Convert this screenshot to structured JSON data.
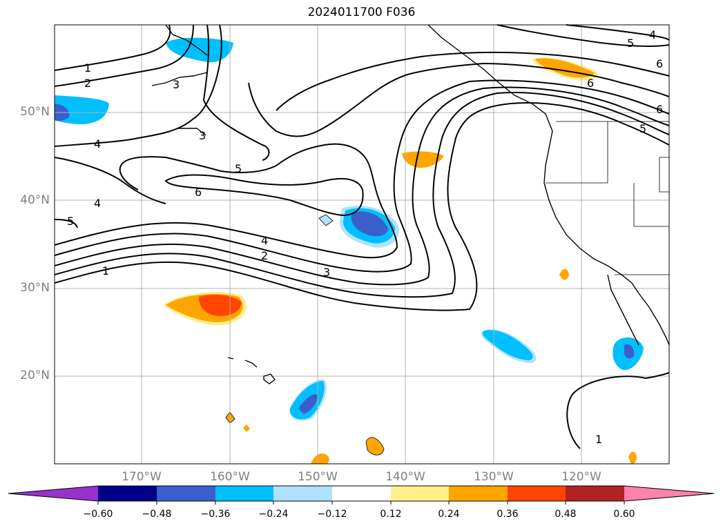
{
  "title": "2024011700 F036",
  "axes": {
    "lat_labels": [
      "50°N",
      "40°N",
      "30°N",
      "20°N"
    ],
    "lon_labels": [
      "170°W",
      "160°W",
      "150°W",
      "140°W",
      "130°W",
      "120°W"
    ]
  },
  "contour_labels": [
    "1",
    "2",
    "3",
    "4",
    "5",
    "6"
  ],
  "colorbar": {
    "ticks": [
      "−0.60",
      "−0.48",
      "−0.36",
      "−0.24",
      "−0.12",
      "0.12",
      "0.24",
      "0.36",
      "0.48",
      "0.60"
    ],
    "colors": [
      "#9932cc",
      "#00008b",
      "#3a5fcd",
      "#00bfff",
      "#b0e2ff",
      "#ffffff",
      "#fff08c",
      "#ffa500",
      "#ff4500",
      "#b22222",
      "#ff82ab"
    ]
  },
  "map_style": {
    "grid_color": "#b0b0b0",
    "contour_color": "#000000",
    "coastline_color": "#000000"
  }
}
